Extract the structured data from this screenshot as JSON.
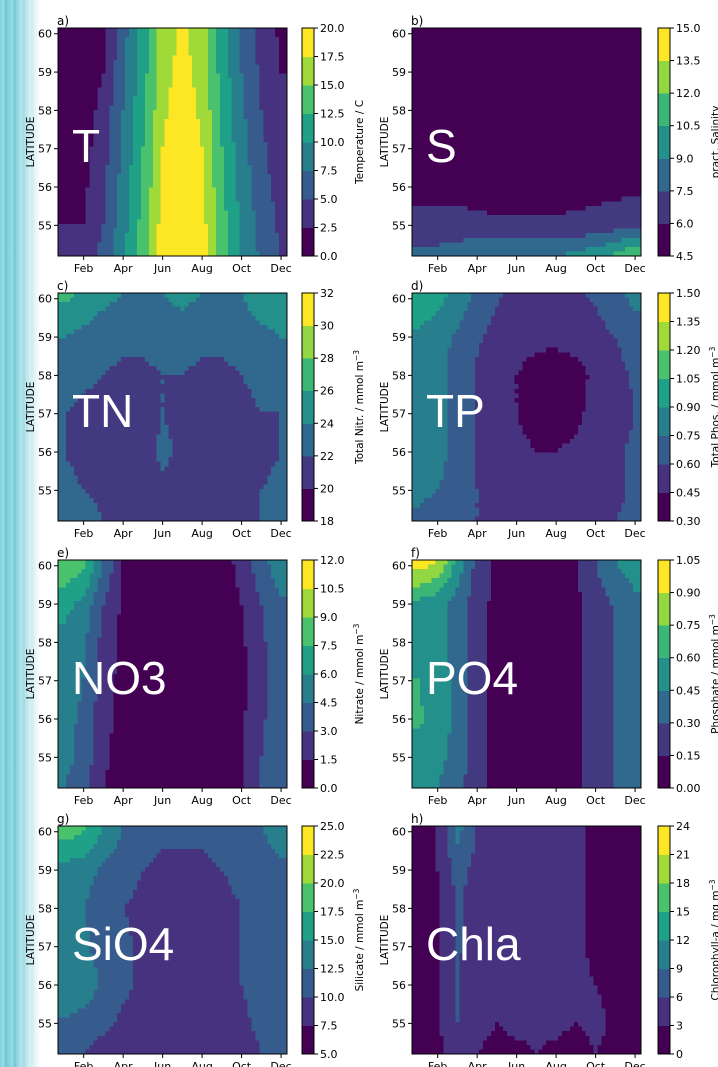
{
  "chart_data": [
    {
      "panel": "a)",
      "type": "heatmap",
      "overlay": "T",
      "title": "",
      "xlabel": "",
      "ylabel": "LATITUDE",
      "xticks": [
        "Feb",
        "Apr",
        "Jun",
        "Aug",
        "Oct",
        "Dec"
      ],
      "yticks": [
        "55",
        "56",
        "57",
        "58",
        "59",
        "60"
      ],
      "colorbar": {
        "label": "Temperature / C",
        "ticks": [
          "0.0",
          "2.5",
          "5.0",
          "7.5",
          "10.0",
          "12.5",
          "15.0",
          "17.5",
          "20.0"
        ],
        "range": [
          0,
          20
        ]
      },
      "x": [
        1,
        2,
        3,
        4,
        5,
        6,
        7,
        8,
        9,
        10,
        11,
        12
      ],
      "y": [
        54.2,
        55,
        56,
        57,
        58,
        59,
        60.1
      ],
      "values": [
        [
          3,
          3,
          6,
          9.5,
          14,
          19,
          21,
          19,
          14,
          10,
          7,
          5
        ],
        [
          2.5,
          2.5,
          5,
          9,
          13.5,
          18.5,
          20.5,
          18.5,
          13.5,
          9.5,
          6.5,
          4.5
        ],
        [
          2,
          2,
          4.5,
          8.5,
          13,
          18,
          20,
          18,
          13,
          9,
          6,
          4
        ],
        [
          1.5,
          1.5,
          4,
          8,
          12.5,
          17.5,
          19.5,
          17.5,
          12.5,
          8.5,
          5.5,
          3.5
        ],
        [
          1,
          1,
          3.5,
          7.5,
          12,
          17,
          19,
          17,
          12,
          8,
          5,
          3
        ],
        [
          0.5,
          0.5,
          2.5,
          7,
          11.5,
          16.5,
          18.5,
          16.5,
          11.5,
          7.5,
          4.5,
          2.5
        ],
        [
          0,
          0,
          1.5,
          6.5,
          11,
          16,
          18,
          16,
          11,
          7,
          4,
          2
        ]
      ]
    },
    {
      "panel": "b)",
      "type": "heatmap",
      "overlay": "S",
      "title": "",
      "xlabel": "",
      "ylabel": "LATITUDE",
      "xticks": [
        "Feb",
        "Apr",
        "Jun",
        "Aug",
        "Oct",
        "Dec"
      ],
      "yticks": [
        "55",
        "56",
        "57",
        "58",
        "59",
        "60"
      ],
      "colorbar": {
        "label": "pract. Salinity",
        "ticks": [
          "4.5",
          "6.0",
          "7.5",
          "9.0",
          "10.5",
          "12.0",
          "13.5",
          "15.0"
        ],
        "range": [
          4.5,
          15
        ]
      },
      "x": [
        1,
        2,
        3,
        4,
        5,
        6,
        7,
        8,
        9,
        10,
        11,
        12
      ],
      "y": [
        54.2,
        55,
        56,
        57,
        58,
        59,
        60.1
      ],
      "values": [
        [
          8,
          8,
          8.5,
          9,
          9,
          9,
          9,
          9,
          9.5,
          10,
          11,
          12
        ],
        [
          6.5,
          6.5,
          6.5,
          6.3,
          6.2,
          6.2,
          6.2,
          6.2,
          6.3,
          6.5,
          6.8,
          7
        ],
        [
          5.6,
          5.6,
          5.5,
          5.5,
          5.5,
          5.5,
          5.5,
          5.5,
          5.5,
          5.5,
          5.6,
          5.6
        ],
        [
          5.5,
          5.5,
          5.5,
          5.4,
          5.4,
          5.4,
          5.4,
          5.4,
          5.4,
          5.4,
          5.5,
          5.5
        ],
        [
          5.5,
          5.5,
          5.4,
          5.4,
          5.4,
          5.4,
          5.4,
          5.4,
          5.4,
          5.4,
          5.5,
          5.5
        ],
        [
          5.3,
          5.3,
          5.2,
          5.2,
          5.2,
          5.2,
          5.2,
          5.2,
          5.2,
          5.2,
          5.3,
          5.3
        ],
        [
          4.7,
          4.7,
          4.7,
          4.7,
          4.7,
          4.7,
          4.7,
          4.7,
          4.7,
          4.7,
          4.7,
          4.7
        ]
      ]
    },
    {
      "panel": "c)",
      "type": "heatmap",
      "overlay": "TN",
      "title": "",
      "xlabel": "",
      "ylabel": "LATITUDE",
      "xticks": [
        "Feb",
        "Apr",
        "Jun",
        "Aug",
        "Oct",
        "Dec"
      ],
      "yticks": [
        "55",
        "56",
        "57",
        "58",
        "59",
        "60"
      ],
      "colorbar": {
        "label": "Total Nitr. / mmol m",
        "label_sup": "−3",
        "ticks": [
          "18",
          "20",
          "22",
          "24",
          "26",
          "28",
          "30",
          "32"
        ],
        "range": [
          18,
          32
        ]
      },
      "x": [
        1,
        2,
        3,
        4,
        5,
        6,
        7,
        8,
        9,
        10,
        11,
        12
      ],
      "y": [
        54.2,
        55,
        56,
        57,
        58,
        59,
        60.1
      ],
      "values": [
        [
          23,
          23,
          22,
          22,
          21,
          21,
          21,
          21,
          22,
          22,
          22,
          23
        ],
        [
          22.5,
          22,
          21.5,
          21,
          21,
          21.5,
          21,
          21,
          21.5,
          21.5,
          22,
          22.5
        ],
        [
          22,
          21.5,
          21,
          20,
          21,
          22.5,
          21.5,
          21,
          20.5,
          21,
          21.5,
          22
        ],
        [
          22,
          21.5,
          21,
          21,
          21,
          22,
          21.5,
          21,
          21,
          21.5,
          22,
          22
        ],
        [
          23,
          22.5,
          22,
          21.5,
          21.5,
          22,
          22,
          21.5,
          21.5,
          22,
          22.5,
          23
        ],
        [
          24,
          23.5,
          23,
          22.5,
          22.5,
          23,
          23,
          22.5,
          22.5,
          23,
          23.5,
          24
        ],
        [
          26.5,
          25.5,
          24.5,
          24,
          23.5,
          24,
          24.5,
          24,
          23.5,
          24,
          25,
          25.5
        ]
      ]
    },
    {
      "panel": "d)",
      "type": "heatmap",
      "overlay": "TP",
      "title": "",
      "xlabel": "",
      "ylabel": "LATITUDE",
      "xticks": [
        "Feb",
        "Apr",
        "Jun",
        "Aug",
        "Oct",
        "Dec"
      ],
      "yticks": [
        "55",
        "56",
        "57",
        "58",
        "59",
        "60"
      ],
      "colorbar": {
        "label": "Total Phos. / mmol m",
        "label_sup": "−3",
        "ticks": [
          "0.30",
          "0.45",
          "0.60",
          "0.75",
          "0.90",
          "1.05",
          "1.20",
          "1.35",
          "1.50"
        ],
        "range": [
          0.3,
          1.5
        ]
      },
      "x": [
        1,
        2,
        3,
        4,
        5,
        6,
        7,
        8,
        9,
        10,
        11,
        12
      ],
      "y": [
        54.2,
        55,
        56,
        57,
        58,
        59,
        60.1
      ],
      "values": [
        [
          0.72,
          0.7,
          0.65,
          0.6,
          0.55,
          0.55,
          0.55,
          0.55,
          0.55,
          0.58,
          0.6,
          0.62
        ],
        [
          0.78,
          0.75,
          0.68,
          0.6,
          0.55,
          0.5,
          0.5,
          0.5,
          0.5,
          0.55,
          0.58,
          0.62
        ],
        [
          0.85,
          0.8,
          0.7,
          0.58,
          0.52,
          0.48,
          0.45,
          0.45,
          0.48,
          0.52,
          0.58,
          0.62
        ],
        [
          0.88,
          0.82,
          0.7,
          0.58,
          0.5,
          0.45,
          0.4,
          0.38,
          0.42,
          0.5,
          0.55,
          0.6
        ],
        [
          0.85,
          0.8,
          0.68,
          0.58,
          0.5,
          0.45,
          0.4,
          0.38,
          0.4,
          0.48,
          0.55,
          0.62
        ],
        [
          0.88,
          0.82,
          0.72,
          0.62,
          0.55,
          0.5,
          0.48,
          0.48,
          0.5,
          0.55,
          0.6,
          0.68
        ],
        [
          1.0,
          0.95,
          0.85,
          0.72,
          0.62,
          0.55,
          0.55,
          0.55,
          0.58,
          0.62,
          0.7,
          0.8
        ]
      ]
    },
    {
      "panel": "e)",
      "type": "heatmap",
      "overlay": "NO3",
      "title": "",
      "xlabel": "",
      "ylabel": "LATITUDE",
      "xticks": [
        "Feb",
        "Apr",
        "Jun",
        "Aug",
        "Oct",
        "Dec"
      ],
      "yticks": [
        "55",
        "56",
        "57",
        "58",
        "59",
        "60"
      ],
      "colorbar": {
        "label": "Nitrate / mmol m",
        "label_sup": "−3",
        "ticks": [
          "0.0",
          "1.5",
          "3.0",
          "4.5",
          "6.0",
          "7.5",
          "9.0",
          "10.5",
          "12.0"
        ],
        "range": [
          0,
          12
        ]
      },
      "x": [
        1,
        2,
        3,
        4,
        5,
        6,
        7,
        8,
        9,
        10,
        11,
        12
      ],
      "y": [
        54.2,
        55,
        56,
        57,
        58,
        59,
        60.1
      ],
      "values": [
        [
          4.5,
          3.5,
          1.5,
          0.8,
          0.5,
          0.5,
          0.5,
          0.5,
          0.6,
          1.2,
          3,
          4
        ],
        [
          5,
          4,
          1.8,
          0.8,
          0.5,
          0.5,
          0.5,
          0.5,
          0.6,
          1.2,
          3,
          4
        ],
        [
          5,
          4.2,
          2,
          0.9,
          0.5,
          0.5,
          0.5,
          0.5,
          0.6,
          1.2,
          2.8,
          3.8
        ],
        [
          5.2,
          4.5,
          2.2,
          1,
          0.5,
          0.5,
          0.5,
          0.5,
          0.6,
          1.1,
          2.6,
          3.6
        ],
        [
          5.5,
          4.8,
          2.5,
          1,
          0.5,
          0.5,
          0.5,
          0.5,
          0.6,
          1.2,
          2.8,
          3.8
        ],
        [
          6.5,
          5.5,
          3,
          1.2,
          0.5,
          0.5,
          0.5,
          0.5,
          0.7,
          1.5,
          3,
          4.2
        ],
        [
          9,
          8,
          4.5,
          1.5,
          0.6,
          0.5,
          0.5,
          0.5,
          0.8,
          2,
          4,
          5.5
        ]
      ]
    },
    {
      "panel": "f)",
      "type": "heatmap",
      "overlay": "PO4",
      "title": "",
      "xlabel": "",
      "ylabel": "LATITUDE",
      "xticks": [
        "Feb",
        "Apr",
        "Jun",
        "Aug",
        "Oct",
        "Dec"
      ],
      "yticks": [
        "55",
        "56",
        "57",
        "58",
        "59",
        "60"
      ],
      "colorbar": {
        "label": "Phosphate / mmol m",
        "label_sup": "−3",
        "ticks": [
          "0.00",
          "0.15",
          "0.30",
          "0.45",
          "0.60",
          "0.75",
          "0.90",
          "1.05"
        ],
        "range": [
          0,
          1.05
        ]
      },
      "x": [
        1,
        2,
        3,
        4,
        5,
        6,
        7,
        8,
        9,
        10,
        11,
        12
      ],
      "y": [
        54.2,
        55,
        56,
        57,
        58,
        59,
        60.1
      ],
      "values": [
        [
          0.5,
          0.45,
          0.35,
          0.2,
          0.1,
          0.08,
          0.08,
          0.08,
          0.12,
          0.2,
          0.3,
          0.35
        ],
        [
          0.55,
          0.5,
          0.38,
          0.22,
          0.1,
          0.07,
          0.07,
          0.08,
          0.12,
          0.2,
          0.3,
          0.36
        ],
        [
          0.62,
          0.55,
          0.4,
          0.22,
          0.1,
          0.07,
          0.07,
          0.07,
          0.12,
          0.2,
          0.3,
          0.38
        ],
        [
          0.6,
          0.55,
          0.4,
          0.22,
          0.1,
          0.07,
          0.07,
          0.07,
          0.12,
          0.2,
          0.3,
          0.38
        ],
        [
          0.55,
          0.5,
          0.38,
          0.22,
          0.1,
          0.07,
          0.07,
          0.07,
          0.12,
          0.2,
          0.3,
          0.38
        ],
        [
          0.55,
          0.5,
          0.38,
          0.22,
          0.1,
          0.07,
          0.07,
          0.07,
          0.12,
          0.22,
          0.32,
          0.4
        ],
        [
          1.0,
          0.9,
          0.55,
          0.25,
          0.12,
          0.08,
          0.08,
          0.08,
          0.15,
          0.3,
          0.45,
          0.55
        ]
      ]
    },
    {
      "panel": "g)",
      "type": "heatmap",
      "overlay": "SiO4",
      "title": "",
      "xlabel": "",
      "ylabel": "LATITUDE",
      "xticks": [
        "Feb",
        "Apr",
        "Jun",
        "Aug",
        "Oct",
        "Dec"
      ],
      "yticks": [
        "55",
        "56",
        "57",
        "58",
        "59",
        "60"
      ],
      "colorbar": {
        "label": "Silicate / mmol m",
        "label_sup": "−3",
        "ticks": [
          "5.0",
          "7.5",
          "10.0",
          "12.5",
          "15.0",
          "17.5",
          "20.0",
          "22.5",
          "25.0"
        ],
        "range": [
          5,
          25
        ]
      },
      "x": [
        1,
        2,
        3,
        4,
        5,
        6,
        7,
        8,
        9,
        10,
        11,
        12
      ],
      "y": [
        54.2,
        55,
        56,
        57,
        58,
        59,
        60.1
      ],
      "values": [
        [
          10,
          10,
          9,
          8.5,
          8,
          7.5,
          7.5,
          7.5,
          8,
          9,
          10,
          10.5
        ],
        [
          12,
          11.5,
          10.5,
          9.5,
          9,
          8.5,
          8.5,
          9,
          9,
          9.5,
          10.5,
          11
        ],
        [
          15,
          14,
          12,
          10.5,
          9.5,
          9.5,
          10,
          9.5,
          9.5,
          10,
          11,
          11.5
        ],
        [
          14,
          13,
          11.5,
          10.5,
          9.5,
          9,
          9.5,
          9.5,
          9.5,
          10,
          11,
          11.5
        ],
        [
          13,
          12.5,
          11,
          10,
          9.5,
          9,
          9,
          9,
          9.5,
          10,
          11,
          11.5
        ],
        [
          14,
          13.5,
          12,
          11,
          10,
          9.5,
          9.5,
          9.5,
          10,
          10.5,
          11.5,
          12
        ],
        [
          19,
          18,
          15,
          12.5,
          11,
          10.5,
          10.5,
          10.5,
          11,
          11.5,
          12.5,
          13.5
        ]
      ]
    },
    {
      "panel": "h)",
      "type": "heatmap",
      "overlay": "Chla",
      "title": "",
      "xlabel": "",
      "ylabel": "LATITUDE",
      "xticks": [
        "Feb",
        "Apr",
        "Jun",
        "Aug",
        "Oct",
        "Dec"
      ],
      "yticks": [
        "55",
        "56",
        "57",
        "58",
        "59",
        "60"
      ],
      "colorbar": {
        "label": "Chlorophyll-a / mg m",
        "label_sup": "−3",
        "ticks": [
          "0",
          "3",
          "6",
          "9",
          "12",
          "15",
          "18",
          "21",
          "24"
        ],
        "range": [
          0,
          24
        ]
      },
      "x": [
        1,
        2,
        3,
        4,
        5,
        6,
        7,
        8,
        9,
        10,
        11,
        12
      ],
      "y": [
        54.2,
        55,
        56,
        57,
        58,
        59,
        60.1
      ],
      "values": [
        [
          2,
          2,
          5,
          3,
          2.5,
          2.5,
          3,
          2.5,
          2,
          3,
          2.5,
          2
        ],
        [
          2,
          2.5,
          6,
          3.5,
          3,
          3.5,
          3.5,
          3.5,
          3,
          3.5,
          2.5,
          2
        ],
        [
          2,
          2.5,
          6,
          4,
          3,
          4,
          4,
          4,
          3.5,
          3,
          2.5,
          2
        ],
        [
          1.5,
          2.5,
          6.5,
          4.5,
          3.5,
          4,
          4,
          4,
          3.5,
          2.5,
          2,
          1.5
        ],
        [
          2,
          2.5,
          6.5,
          4.5,
          4,
          4,
          4,
          4,
          3.5,
          2.5,
          2,
          1.5
        ],
        [
          2,
          3,
          7,
          5,
          4,
          4,
          4,
          4,
          3.5,
          2.5,
          2,
          1.5
        ],
        [
          2,
          3,
          10,
          6,
          4,
          4,
          4,
          4,
          3.5,
          2.5,
          2,
          1.5
        ]
      ]
    }
  ]
}
